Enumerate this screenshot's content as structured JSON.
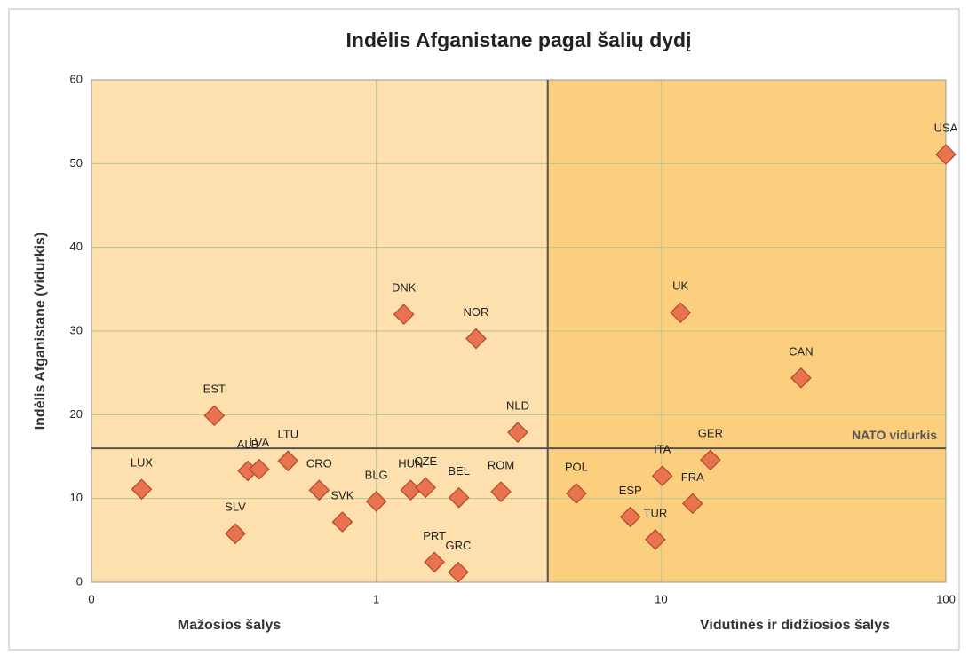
{
  "chart_data": {
    "type": "scatter",
    "title": "Indėlis Afganistane pagal šalių dydį",
    "ylabel": "Indėlis Afganistane (vidurkis)",
    "xlabel_left": "Mažosios šalys",
    "xlabel_right": "Vidutinės ir didžiosios šalys",
    "xscale": "log",
    "xlim": [
      0.1,
      100
    ],
    "xticks": [
      {
        "value": 0.1,
        "label": "0"
      },
      1,
      10,
      100
    ],
    "ylim": [
      0,
      60
    ],
    "yticks": [
      0,
      10,
      20,
      30,
      40,
      50,
      60
    ],
    "grid": true,
    "color": "#e8734e",
    "divider_x": 4,
    "average_y": 16,
    "average_label": "NATO vidurkis",
    "labels": [
      "LUX",
      "EST",
      "ALB",
      "LVA",
      "LTU",
      "SLV",
      "CRO",
      "SVK",
      "BLG",
      "DNK",
      "HUN",
      "CZE",
      "PRT",
      "GRC",
      "BEL",
      "NOR",
      "ROM",
      "NLD",
      "POL",
      "ESP",
      "TUR",
      "ITA",
      "UK",
      "FRA",
      "GER",
      "CAN",
      "USA"
    ],
    "x": [
      0.15,
      0.27,
      0.354,
      0.388,
      0.49,
      0.32,
      0.63,
      0.76,
      1.0,
      1.25,
      1.32,
      1.49,
      1.6,
      1.94,
      1.95,
      2.24,
      2.74,
      3.14,
      5.04,
      7.8,
      9.55,
      10.1,
      11.7,
      12.9,
      14.9,
      31.0,
      100
    ],
    "y": [
      11.1,
      19.9,
      13.3,
      13.5,
      14.5,
      5.8,
      11.0,
      7.2,
      9.65,
      32.0,
      11.0,
      11.3,
      2.4,
      1.2,
      10.1,
      29.1,
      10.8,
      17.9,
      10.6,
      7.8,
      5.1,
      12.7,
      32.2,
      9.4,
      14.6,
      24.4,
      51.1
    ]
  }
}
